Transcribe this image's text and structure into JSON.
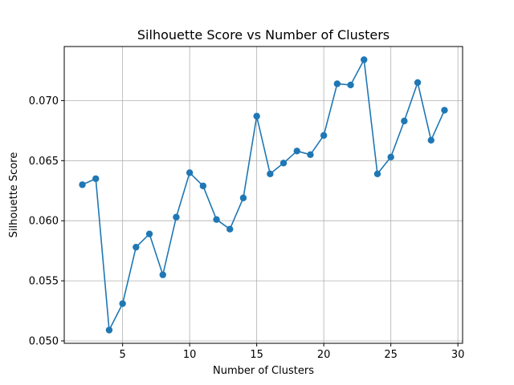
{
  "chart_data": {
    "type": "line",
    "title": "Silhouette Score vs Number of Clusters",
    "xlabel": "Number of Clusters",
    "ylabel": "Silhouette Score",
    "xlim": [
      0.65,
      30.35
    ],
    "ylim": [
      0.0498,
      0.0745
    ],
    "xticks": [
      5,
      10,
      15,
      20,
      25,
      30
    ],
    "xtick_labels": [
      "5",
      "10",
      "15",
      "20",
      "25",
      "30"
    ],
    "yticks": [
      0.05,
      0.055,
      0.06,
      0.065,
      0.07
    ],
    "ytick_labels": [
      "0.050",
      "0.055",
      "0.060",
      "0.065",
      "0.070"
    ],
    "grid": true,
    "color": "#1f77b4",
    "marker": "circle",
    "x": [
      2,
      3,
      4,
      5,
      6,
      7,
      8,
      9,
      10,
      11,
      12,
      13,
      14,
      15,
      16,
      17,
      18,
      19,
      20,
      21,
      22,
      23,
      24,
      25,
      26,
      27,
      28,
      29
    ],
    "y": [
      0.063,
      0.0635,
      0.0509,
      0.0531,
      0.0578,
      0.0589,
      0.0555,
      0.0603,
      0.064,
      0.0629,
      0.0601,
      0.0593,
      0.0619,
      0.0687,
      0.0639,
      0.0648,
      0.0658,
      0.0655,
      0.0671,
      0.0714,
      0.0713,
      0.0734,
      0.0639,
      0.0653,
      0.0683,
      0.0715,
      0.0667,
      0.0692
    ]
  }
}
